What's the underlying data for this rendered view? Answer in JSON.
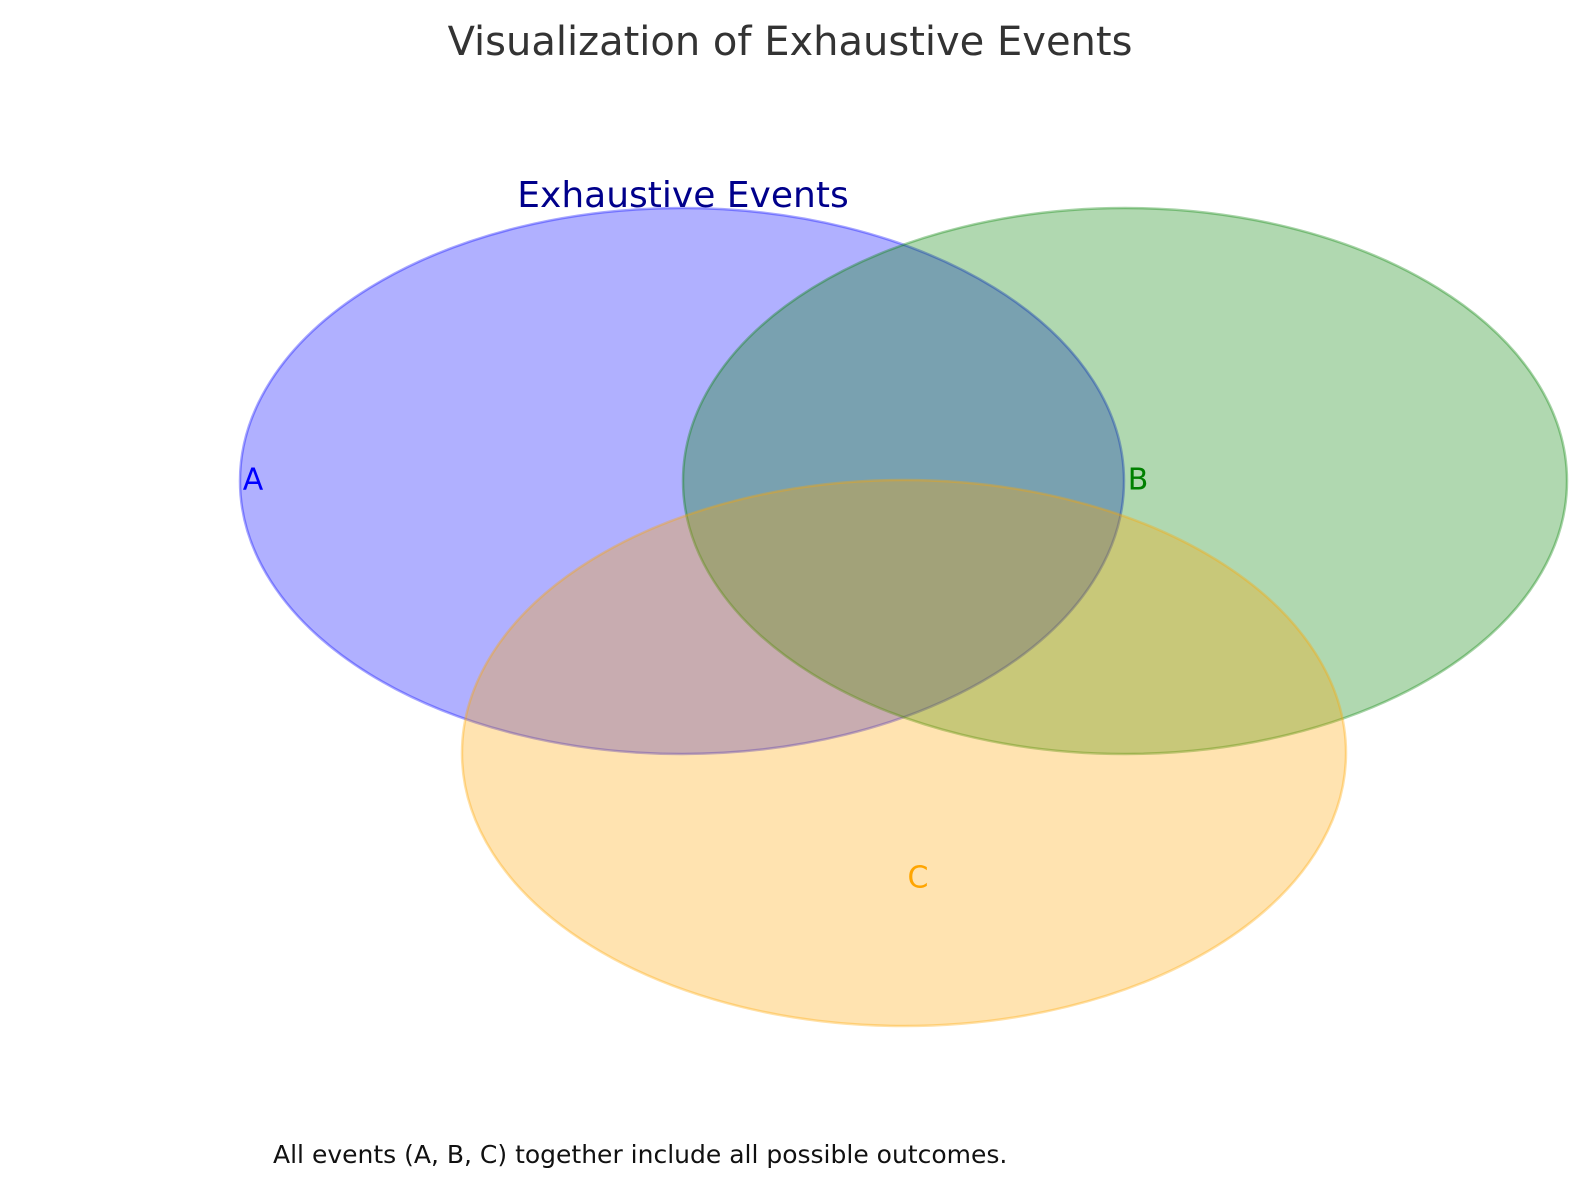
{
  "title": "Visualization of Exhaustive Events",
  "subtitle": "Exhaustive Events",
  "caption": "All events (A, B, C) together include all possible outcomes.",
  "colors": {
    "subtitle": "#00008b",
    "a": "#0000ff",
    "b": "#008000",
    "c": "#ffa500"
  },
  "sets": [
    {
      "id": "a",
      "label": "A"
    },
    {
      "id": "b",
      "label": "B"
    },
    {
      "id": "c",
      "label": "C"
    }
  ]
}
